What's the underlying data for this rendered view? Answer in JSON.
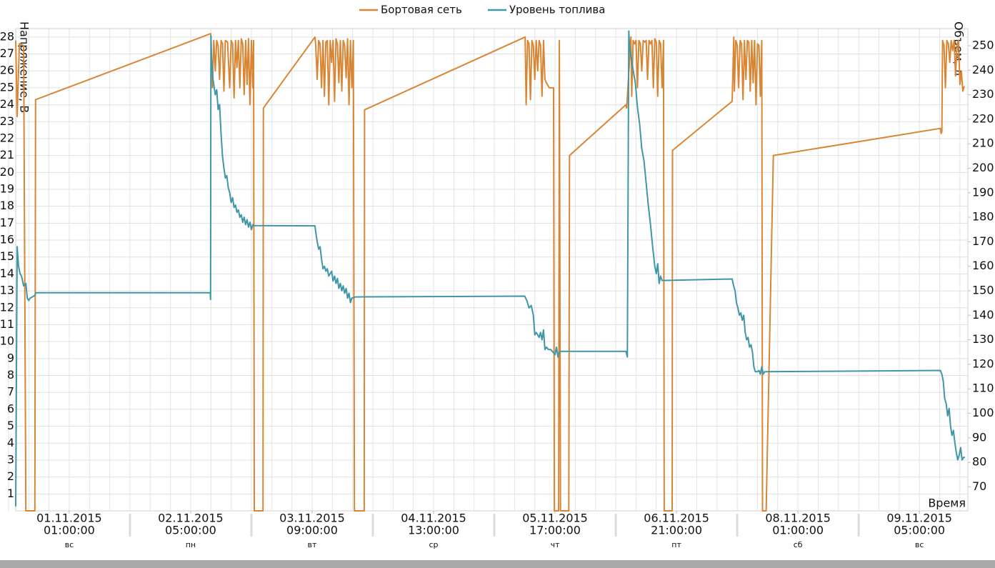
{
  "chart_data": {
    "type": "line",
    "legend": "top",
    "x_label": "Время",
    "y_label": "Напряжение, В",
    "y2_label": "Объем, л",
    "grid": true,
    "xlim": [
      "31.10.2015 12:40",
      "09.11.2015 16:10"
    ],
    "ylim": [
      0,
      28.5
    ],
    "y2lim": [
      60.2,
      257
    ],
    "yticks": [
      1,
      2,
      3,
      4,
      5,
      6,
      7,
      8,
      9,
      10,
      11,
      12,
      13,
      14,
      15,
      16,
      17,
      18,
      19,
      20,
      21,
      22,
      23,
      24,
      25,
      26,
      27,
      28
    ],
    "y2ticks": [
      70,
      80,
      90,
      100,
      110,
      120,
      130,
      140,
      150,
      160,
      170,
      180,
      190,
      200,
      210,
      220,
      230,
      240,
      250
    ],
    "xticks": [
      {
        "date": "01.11.2015",
        "time": "01:00:00",
        "day": "вс"
      },
      {
        "date": "02.11.2015",
        "time": "05:00:00",
        "day": "пн"
      },
      {
        "date": "03.11.2015",
        "time": "09:00:00",
        "day": "вт"
      },
      {
        "date": "04.11.2015",
        "time": "13:00:00",
        "day": "ср"
      },
      {
        "date": "05.11.2015",
        "time": "17:00:00",
        "day": "чт"
      },
      {
        "date": "06.11.2015",
        "time": "21:00:00",
        "day": "пт"
      },
      {
        "date": "08.11.2015",
        "time": "01:00:00",
        "day": "сб"
      },
      {
        "date": "09.11.2015",
        "time": "05:00:00",
        "day": "вс"
      }
    ],
    "series": [
      {
        "name": "Бортовая сеть",
        "color": "#d98634",
        "axis": "y",
        "x": [
          "31.10.2015 12:40",
          "31.10.2015 13:00",
          "31.10.2015 13:30",
          "31.10.2015 14:30",
          "31.10.2015 15:00",
          "31.10.2015 17:05",
          "31.10.2015 17:15",
          "02.11.2015 09:36",
          "02.11.2015 09:40",
          "02.11.2015 10:00",
          "02.11.2015 10:20",
          "02.11.2015 10:40",
          "02.11.2015 11:00",
          "02.11.2015 11:20",
          "02.11.2015 11:40",
          "02.11.2015 12:00",
          "02.11.2015 12:20",
          "02.11.2015 12:40",
          "02.11.2015 13:00",
          "02.11.2015 13:30",
          "02.11.2015 14:00",
          "02.11.2015 14:20",
          "02.11.2015 14:40",
          "02.11.2015 15:00",
          "02.11.2015 15:20",
          "02.11.2015 15:40",
          "02.11.2015 16:00",
          "02.11.2015 16:20",
          "02.11.2015 16:40",
          "02.11.2015 17:00",
          "02.11.2015 17:20",
          "02.11.2015 17:40",
          "02.11.2015 18:00",
          "02.11.2015 18:20",
          "02.11.2015 18:40",
          "02.11.2015 19:00",
          "02.11.2015 19:20",
          "02.11.2015 19:30",
          "02.11.2015 19:40",
          "02.11.2015 21:40",
          "02.11.2015 21:45",
          "03.11.2015 09:40",
          "03.11.2015 09:50",
          "03.11.2015 10:10",
          "03.11.2015 10:30",
          "03.11.2015 10:50",
          "03.11.2015 11:10",
          "03.11.2015 11:30",
          "03.11.2015 11:50",
          "03.11.2015 12:10",
          "03.11.2015 12:30",
          "03.11.2015 12:50",
          "03.11.2015 13:10",
          "03.11.2015 13:30",
          "03.11.2015 13:50",
          "03.11.2015 14:10",
          "03.11.2015 14:30",
          "03.11.2015 14:50",
          "03.11.2015 15:10",
          "03.11.2015 15:30",
          "03.11.2015 15:50",
          "03.11.2015 16:10",
          "03.11.2015 16:30",
          "03.11.2015 16:50",
          "03.11.2015 17:10",
          "03.11.2015 17:30",
          "03.11.2015 17:50",
          "03.11.2015 18:10",
          "03.11.2015 18:30",
          "03.11.2015 18:45",
          "03.11.2015 21:00",
          "03.11.2015 21:05",
          "05.11.2015 10:06",
          "05.11.2015 10:20",
          "05.11.2015 10:40",
          "05.11.2015 11:00",
          "05.11.2015 11:20",
          "05.11.2015 11:40",
          "05.11.2015 12:00",
          "05.11.2015 12:20",
          "05.11.2015 12:40",
          "05.11.2015 13:00",
          "05.11.2015 13:20",
          "05.11.2015 13:40",
          "05.11.2015 14:00",
          "05.11.2015 14:20",
          "05.11.2015 14:40",
          "05.11.2015 15:00",
          "05.11.2015 15:40",
          "05.11.2015 16:40",
          "05.11.2015 16:50",
          "05.11.2015 17:50",
          "05.11.2015 18:00",
          "05.11.2015 18:15",
          "05.11.2015 20:10",
          "05.11.2015 20:20",
          "06.11.2015 09:20",
          "06.11.2015 09:30",
          "06.11.2015 10:30",
          "06.11.2015 10:40",
          "06.11.2015 11:00",
          "06.11.2015 11:20",
          "06.11.2015 11:40",
          "06.11.2015 12:00",
          "06.11.2015 12:20",
          "06.11.2015 12:40",
          "06.11.2015 13:00",
          "06.11.2015 13:20",
          "06.11.2015 13:40",
          "06.11.2015 14:00",
          "06.11.2015 14:20",
          "06.11.2015 14:40",
          "06.11.2015 15:00",
          "06.11.2015 15:20",
          "06.11.2015 15:40",
          "06.11.2015 16:00",
          "06.11.2015 16:20",
          "06.11.2015 16:40",
          "06.11.2015 17:00",
          "06.11.2015 17:20",
          "06.11.2015 17:40",
          "06.11.2015 18:00",
          "06.11.2015 18:10",
          "06.11.2015 20:00",
          "06.11.2015 20:05",
          "07.11.2015 09:50",
          "07.11.2015 10:12",
          "07.11.2015 10:20",
          "07.11.2015 10:40",
          "07.11.2015 11:00",
          "07.11.2015 11:20",
          "07.11.2015 11:40",
          "07.11.2015 12:00",
          "07.11.2015 12:20",
          "07.11.2015 12:40",
          "07.11.2015 13:00",
          "07.11.2015 13:20",
          "07.11.2015 13:40",
          "07.11.2015 14:00",
          "07.11.2015 14:20",
          "07.11.2015 14:40",
          "07.11.2015 15:00",
          "07.11.2015 15:20",
          "07.11.2015 15:40",
          "07.11.2015 16:00",
          "07.11.2015 16:20",
          "07.11.2015 16:40",
          "07.11.2015 16:50",
          "07.11.2015 17:40",
          "07.11.2015 19:20",
          "09.11.2015 09:50",
          "09.11.2015 10:00",
          "09.11.2015 10:10",
          "09.11.2015 10:20",
          "09.11.2015 10:40",
          "09.11.2015 11:00",
          "09.11.2015 11:20",
          "09.11.2015 11:40",
          "09.11.2015 12:00",
          "09.11.2015 12:20",
          "09.11.2015 12:40",
          "09.11.2015 13:00",
          "09.11.2015 13:20",
          "09.11.2015 13:40",
          "09.11.2015 14:00",
          "09.11.2015 14:20",
          "09.11.2015 14:40",
          "09.11.2015 15:00",
          "09.11.2015 15:20"
        ],
        "values": [
          27.8,
          23.3,
          27.6,
          27.5,
          0,
          0,
          24.3,
          28.2,
          28.0,
          25.0,
          27.8,
          26.0,
          27.8,
          27.5,
          25.5,
          27.8,
          27.6,
          24.8,
          27.8,
          27.7,
          25.0,
          27.8,
          27.6,
          24.4,
          27.8,
          26.2,
          27.8,
          25.0,
          27.9,
          27.6,
          24.6,
          27.8,
          25.2,
          27.9,
          24.0,
          27.8,
          25.0,
          27.8,
          0,
          0,
          23.8,
          28.0,
          27.5,
          25.5,
          27.8,
          27.6,
          25.0,
          27.8,
          24.5,
          27.7,
          27.8,
          24.0,
          27.8,
          26.5,
          27.8,
          24.2,
          27.9,
          27.6,
          25.3,
          27.8,
          24.8,
          27.8,
          27.5,
          25.6,
          27.9,
          24.0,
          27.8,
          25.0,
          27.8,
          0,
          0,
          23.7,
          28.0,
          24.0,
          27.8,
          27.6,
          24.3,
          27.8,
          27.5,
          25.5,
          27.8,
          26.0,
          27.8,
          27.5,
          24.5,
          27.8,
          25.5,
          25.3,
          25.0,
          25.0,
          0,
          0,
          27.8,
          0,
          0,
          21.0,
          24.0,
          23.8,
          28.0,
          24.5,
          27.8,
          27.6,
          27.8,
          25.0,
          27.8,
          27.6,
          26.0,
          27.8,
          27.7,
          27.8,
          25.5,
          27.8,
          27.6,
          27.8,
          25.0,
          27.9,
          27.7,
          24.5,
          27.8,
          27.6,
          25.0,
          27.8,
          0,
          0,
          21.3,
          24.2,
          28.0,
          24.8,
          27.8,
          27.5,
          25.0,
          27.8,
          27.6,
          24.3,
          27.8,
          25.5,
          27.8,
          27.7,
          24.8,
          27.8,
          25.3,
          27.8,
          24.0,
          27.6,
          27.5,
          24.5,
          27.8,
          0,
          0,
          21.0,
          22.6,
          22.3,
          22.4,
          27.8,
          27.5,
          25.0,
          27.8,
          27.6,
          26.5,
          27.8,
          27.2,
          27.8,
          25.7,
          27.6,
          27.8,
          25.2,
          26.0,
          24.8,
          25.1
        ]
      },
      {
        "name": "Уровень топлива",
        "color": "#3f97a8",
        "axis": "y2",
        "x": [
          "31.10.2015 12:40",
          "31.10.2015 13:00",
          "31.10.2015 13:20",
          "31.10.2015 13:40",
          "31.10.2015 14:00",
          "31.10.2015 14:30",
          "31.10.2015 15:00",
          "31.10.2015 15:20",
          "31.10.2015 15:40",
          "31.10.2015 16:00",
          "31.10.2015 17:00",
          "31.10.2015 17:20",
          "02.11.2015 09:30",
          "02.11.2015 09:35",
          "02.11.2015 09:40",
          "02.11.2015 09:50",
          "02.11.2015 10:10",
          "02.11.2015 10:40",
          "02.11.2015 11:00",
          "02.11.2015 11:20",
          "02.11.2015 11:40",
          "02.11.2015 12:00",
          "02.11.2015 12:20",
          "02.11.2015 12:40",
          "02.11.2015 13:00",
          "02.11.2015 13:20",
          "02.11.2015 13:40",
          "02.11.2015 14:00",
          "02.11.2015 14:20",
          "02.11.2015 14:40",
          "02.11.2015 15:00",
          "02.11.2015 15:20",
          "02.11.2015 15:40",
          "02.11.2015 16:00",
          "02.11.2015 16:20",
          "02.11.2015 16:40",
          "02.11.2015 17:00",
          "02.11.2015 17:20",
          "02.11.2015 17:40",
          "02.11.2015 18:00",
          "02.11.2015 18:20",
          "02.11.2015 18:40",
          "02.11.2015 19:00",
          "02.11.2015 19:20",
          "02.11.2015 19:40",
          "03.11.2015 09:40",
          "03.11.2015 09:50",
          "03.11.2015 10:10",
          "03.11.2015 10:30",
          "03.11.2015 10:50",
          "03.11.2015 11:10",
          "03.11.2015 11:30",
          "03.11.2015 11:50",
          "03.11.2015 12:10",
          "03.11.2015 12:30",
          "03.11.2015 12:50",
          "03.11.2015 13:10",
          "03.11.2015 13:30",
          "03.11.2015 13:50",
          "03.11.2015 14:10",
          "03.11.2015 14:30",
          "03.11.2015 14:50",
          "03.11.2015 15:10",
          "03.11.2015 15:30",
          "03.11.2015 15:50",
          "03.11.2015 16:10",
          "03.11.2015 16:30",
          "03.11.2015 16:50",
          "03.11.2015 17:10",
          "03.11.2015 17:30",
          "03.11.2015 17:50",
          "03.11.2015 18:10",
          "03.11.2015 19:00",
          "05.11.2015 10:00",
          "05.11.2015 10:30",
          "05.11.2015 11:00",
          "05.11.2015 11:30",
          "05.11.2015 12:00",
          "05.11.2015 12:20",
          "05.11.2015 12:40",
          "05.11.2015 13:00",
          "05.11.2015 13:20",
          "05.11.2015 13:40",
          "05.11.2015 14:00",
          "05.11.2015 14:20",
          "05.11.2015 14:40",
          "05.11.2015 15:00",
          "05.11.2015 15:30",
          "05.11.2015 16:00",
          "05.11.2015 16:30",
          "05.11.2015 17:00",
          "05.11.2015 17:20",
          "05.11.2015 17:40",
          "05.11.2015 18:00",
          "05.11.2015 18:30",
          "06.11.2015 09:20",
          "06.11.2015 09:40",
          "06.11.2015 10:00",
          "06.11.2015 10:10",
          "06.11.2015 10:30",
          "06.11.2015 11:00",
          "06.11.2015 11:30",
          "06.11.2015 12:00",
          "06.11.2015 12:30",
          "06.11.2015 13:00",
          "06.11.2015 13:30",
          "06.11.2015 14:00",
          "06.11.2015 14:30",
          "06.11.2015 15:00",
          "06.11.2015 15:30",
          "06.11.2015 16:00",
          "06.11.2015 16:20",
          "06.11.2015 16:40",
          "06.11.2015 17:00",
          "06.11.2015 17:20",
          "06.11.2015 17:40",
          "07.11.2015 09:50",
          "07.11.2015 10:10",
          "07.11.2015 10:30",
          "07.11.2015 10:50",
          "07.11.2015 11:10",
          "07.11.2015 11:30",
          "07.11.2015 11:50",
          "07.11.2015 12:10",
          "07.11.2015 12:30",
          "07.11.2015 12:50",
          "07.11.2015 13:10",
          "07.11.2015 13:30",
          "07.11.2015 13:50",
          "07.11.2015 14:10",
          "07.11.2015 14:30",
          "07.11.2015 14:50",
          "07.11.2015 15:10",
          "07.11.2015 15:40",
          "07.11.2015 16:00",
          "07.11.2015 16:20",
          "07.11.2015 16:40",
          "07.11.2015 17:00",
          "07.11.2015 17:20",
          "09.11.2015 09:50",
          "09.11.2015 10:10",
          "09.11.2015 10:30",
          "09.11.2015 10:50",
          "09.11.2015 11:10",
          "09.11.2015 11:30",
          "09.11.2015 11:50",
          "09.11.2015 12:10",
          "09.11.2015 12:30",
          "09.11.2015 12:50",
          "09.11.2015 13:10",
          "09.11.2015 13:30",
          "09.11.2015 13:50",
          "09.11.2015 14:10",
          "09.11.2015 14:30",
          "09.11.2015 14:50",
          "09.11.2015 15:10",
          "09.11.2015 15:30"
        ],
        "values": [
          62,
          168,
          160,
          157,
          156,
          152,
          153,
          147,
          146,
          147,
          148,
          149.2,
          149.2,
          146.5,
          254,
          244,
          236,
          230,
          232,
          224,
          226,
          214,
          205,
          200,
          196,
          197,
          192,
          190,
          186,
          188,
          184,
          185,
          182,
          183,
          180,
          181,
          178,
          180,
          177,
          179,
          176,
          178,
          175,
          177,
          176.6,
          176.5,
          174,
          170,
          167,
          168,
          163,
          159,
          160,
          158,
          159,
          156,
          157,
          158,
          154,
          156,
          153,
          155,
          151,
          153,
          150,
          152,
          149,
          151,
          147,
          149,
          145.2,
          147,
          147.5,
          147.8,
          146,
          143,
          144,
          140,
          132,
          133,
          132,
          131,
          133,
          130,
          134,
          126,
          127,
          126,
          126,
          125,
          124,
          127,
          123,
          125,
          125.3,
          125.3,
          123,
          256,
          250,
          246,
          240,
          235,
          225,
          218,
          208,
          203,
          194,
          185,
          177,
          168,
          160,
          157,
          161,
          153,
          156,
          154.2,
          154.8,
          152,
          150,
          145,
          143,
          140,
          141,
          138,
          140,
          133,
          130,
          131,
          127,
          128,
          125,
          119,
          117,
          117,
          117.5,
          116,
          119,
          116,
          117,
          117.5,
          116,
          113,
          106,
          104,
          99,
          102,
          95,
          91,
          93,
          88,
          84,
          81,
          83,
          86,
          81,
          82,
          82
        ]
      }
    ]
  }
}
